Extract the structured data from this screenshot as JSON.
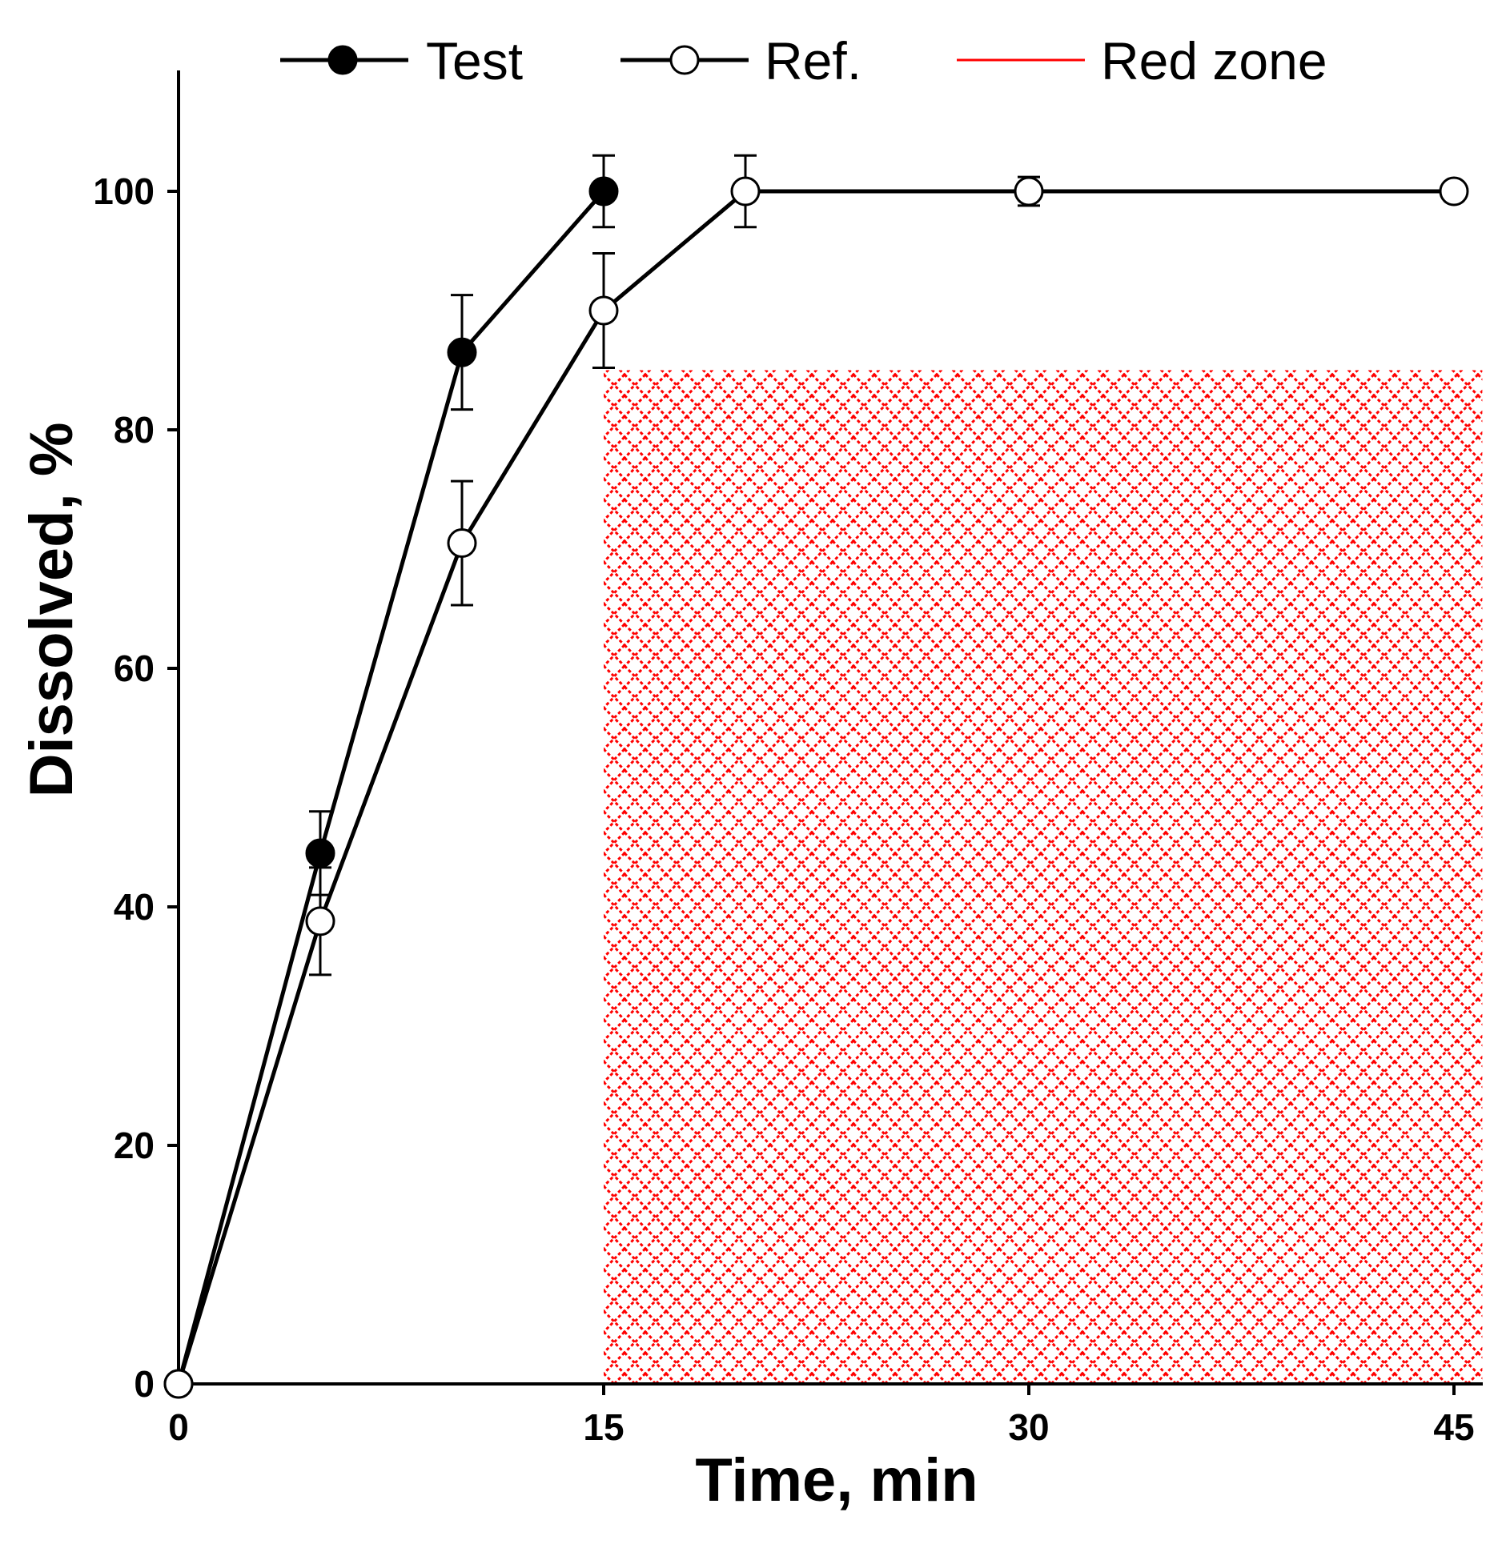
{
  "chart_data": {
    "type": "line",
    "xlabel": "Time, min",
    "ylabel": "Dissolved, %",
    "xlim": [
      0,
      46
    ],
    "ylim": [
      0,
      110
    ],
    "x_ticks": [
      0,
      15,
      30,
      45
    ],
    "y_ticks": [
      0,
      20,
      40,
      60,
      80,
      100
    ],
    "grid": false,
    "legend_position": "top",
    "series": [
      {
        "name": "Test",
        "marker": "filled-circle",
        "color": "#000000",
        "x": [
          0,
          5,
          10,
          15
        ],
        "y": [
          0,
          44.5,
          86.5,
          100
        ],
        "err": [
          0,
          3.5,
          4.8,
          3.0
        ]
      },
      {
        "name": "Ref.",
        "marker": "open-circle",
        "color": "#000000",
        "x": [
          0,
          5,
          10,
          15,
          20,
          30,
          45
        ],
        "y": [
          0,
          38.8,
          70.5,
          90,
          100,
          100,
          100
        ],
        "err": [
          0,
          4.5,
          5.2,
          4.8,
          3.0,
          1.2,
          0
        ]
      }
    ],
    "regions": [
      {
        "name": "Red zone",
        "x_range": [
          15,
          46
        ],
        "y_range": [
          0,
          85
        ],
        "color": "#ff0000",
        "pattern": "crosshatch"
      }
    ]
  }
}
